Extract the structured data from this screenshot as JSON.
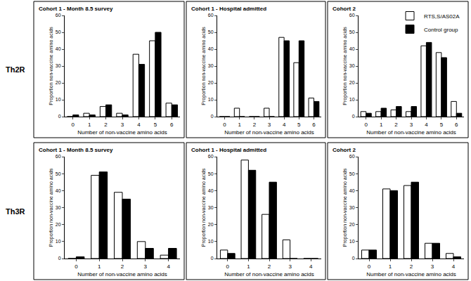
{
  "chart_data": [
    {
      "type": "bar",
      "title": "Cohort 1 - Month 8.5 survey",
      "annotations": [
        {
          "text": "Th2R"
        }
      ],
      "x_label": "Number of non-vaccine amino acids",
      "y_label": "Proportion non-vaccine amino acids",
      "categories": [
        "0",
        "1",
        "2",
        "3",
        "4",
        "5",
        "6"
      ],
      "series": [
        {
          "name": "RTS,S/AS02A",
          "color": "#ffffff",
          "values": [
            0,
            2,
            6,
            2,
            37,
            45,
            8
          ]
        },
        {
          "name": "Control group",
          "color": "#000000",
          "values": [
            1,
            1,
            7,
            1,
            31,
            50,
            7
          ]
        }
      ],
      "ylim": [
        0,
        60
      ],
      "yticks": [
        0,
        10,
        20,
        30,
        40,
        50,
        60
      ]
    },
    {
      "type": "bar",
      "title": "Cohort 1 - Hospital admitted",
      "x_label": "Number of non-vaccine amino acids",
      "y_label": "Proportion non-vaccine amino acids",
      "categories": [
        "0",
        "1",
        "2",
        "3",
        "4",
        "5",
        "6"
      ],
      "series": [
        {
          "name": "RTS,S/AS02A",
          "color": "#ffffff",
          "values": [
            0,
            5,
            0,
            5,
            47,
            32,
            11
          ]
        },
        {
          "name": "Control group",
          "color": "#000000",
          "values": [
            0,
            0,
            0,
            0,
            45,
            45,
            9
          ]
        }
      ],
      "ylim": [
        0,
        60
      ],
      "yticks": [
        0,
        10,
        20,
        30,
        40,
        50,
        60
      ]
    },
    {
      "type": "bar",
      "title": "Cohort 2",
      "legend": "top right",
      "x_label": "Number of non-vaccine amino acids",
      "y_label": "Proportion non-vaccine amino acids",
      "categories": [
        "0",
        "1",
        "2",
        "3",
        "4",
        "5",
        "6"
      ],
      "series": [
        {
          "name": "RTS,S/AS02A",
          "color": "#ffffff",
          "values": [
            3,
            3,
            4,
            3,
            42,
            38,
            9
          ]
        },
        {
          "name": "Control group",
          "color": "#000000",
          "values": [
            2,
            5,
            6,
            6,
            44,
            35,
            2
          ]
        }
      ],
      "ylim": [
        0,
        60
      ],
      "yticks": [
        0,
        10,
        20,
        30,
        40,
        50,
        60
      ]
    },
    {
      "type": "bar",
      "title": "Cohort 1 - Month 8.5 survey",
      "annotations": [
        {
          "text": "Th3R"
        }
      ],
      "x_label": "Number of non-vaccine amino acids",
      "y_label": "Proportion non-vaccine amino acids",
      "categories": [
        "0",
        "1",
        "2",
        "3",
        "4"
      ],
      "series": [
        {
          "name": "RTS,S/AS02A",
          "color": "#ffffff",
          "values": [
            0,
            49,
            39,
            10,
            2
          ]
        },
        {
          "name": "Control group",
          "color": "#000000",
          "values": [
            1,
            51,
            35,
            6,
            6
          ]
        }
      ],
      "ylim": [
        0,
        60
      ],
      "yticks": [
        0,
        10,
        20,
        30,
        40,
        50,
        60
      ]
    },
    {
      "type": "bar",
      "title": "Cohort 1 - Hospital admitted",
      "x_label": "Number of non-vaccine amino acids",
      "y_label": "Proportion non-vaccine amino acids",
      "categories": [
        "0",
        "1",
        "2",
        "3",
        "4"
      ],
      "series": [
        {
          "name": "RTS,S/AS02A",
          "color": "#ffffff",
          "values": [
            5,
            58,
            26,
            11,
            0
          ]
        },
        {
          "name": "Control group",
          "color": "#000000",
          "values": [
            3,
            52,
            45,
            0,
            0
          ]
        }
      ],
      "ylim": [
        0,
        60
      ],
      "yticks": [
        0,
        10,
        20,
        30,
        40,
        50,
        60
      ]
    },
    {
      "type": "bar",
      "title": "Cohort 2",
      "x_label": "Number of non-vaccine amino acids",
      "y_label": "Proportion non-vaccine amino acids",
      "categories": [
        "0",
        "1",
        "2",
        "3",
        "4"
      ],
      "series": [
        {
          "name": "RTS,S/AS02A",
          "color": "#ffffff",
          "values": [
            5,
            41,
            43,
            9,
            3
          ]
        },
        {
          "name": "Control group",
          "color": "#000000",
          "values": [
            5,
            40,
            45,
            9,
            1
          ]
        }
      ],
      "ylim": [
        0,
        60
      ],
      "yticks": [
        0,
        10,
        20,
        30,
        40,
        50,
        60
      ]
    }
  ]
}
